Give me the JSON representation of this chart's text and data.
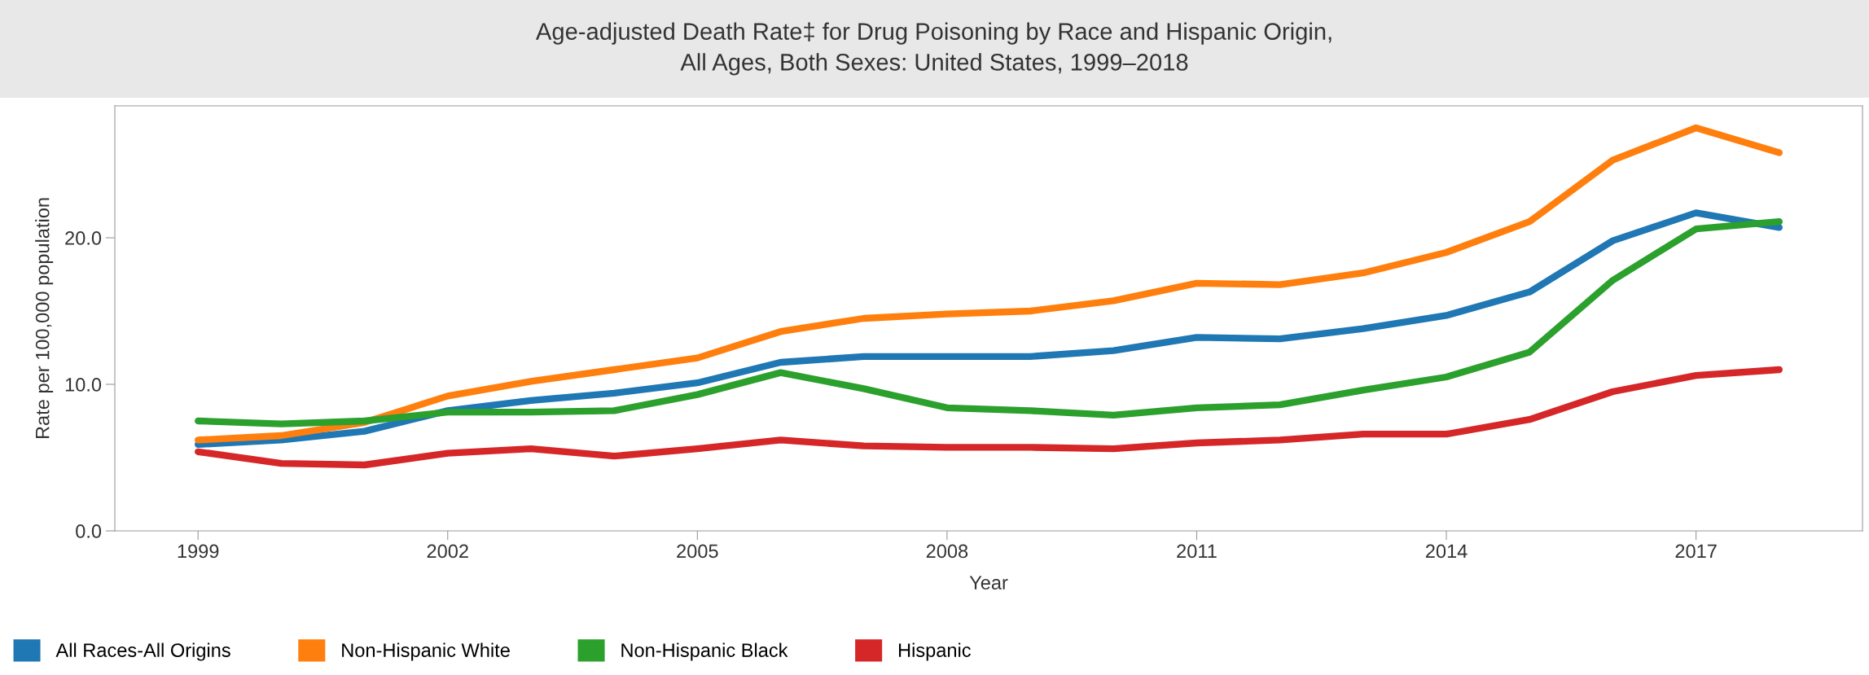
{
  "chart_data": {
    "type": "line",
    "title": "Age-adjusted Death Rate‡ for Drug Poisoning by Race and Hispanic Origin,\nAll Ages, Both Sexes: United States, 1999–2018",
    "xlabel": "Year",
    "ylabel": "Rate per 100,000 population",
    "x": [
      1999,
      2000,
      2001,
      2002,
      2003,
      2004,
      2005,
      2006,
      2007,
      2008,
      2009,
      2010,
      2011,
      2012,
      2013,
      2014,
      2015,
      2016,
      2017,
      2018
    ],
    "series": [
      {
        "name": "All Races-All Origins",
        "color": "#1f77b4",
        "values": [
          5.9,
          6.2,
          6.8,
          8.2,
          8.9,
          9.4,
          10.1,
          11.5,
          11.9,
          11.9,
          11.9,
          12.3,
          13.2,
          13.1,
          13.8,
          14.7,
          16.3,
          19.8,
          21.7,
          20.7
        ]
      },
      {
        "name": "Non-Hispanic White",
        "color": "#ff7f0e",
        "values": [
          6.2,
          6.5,
          7.4,
          9.2,
          10.2,
          11.0,
          11.8,
          13.6,
          14.5,
          14.8,
          15.0,
          15.7,
          16.9,
          16.8,
          17.6,
          19.0,
          21.1,
          25.3,
          27.5,
          25.8
        ]
      },
      {
        "name": "Non-Hispanic Black",
        "color": "#2ca02c",
        "values": [
          7.5,
          7.3,
          7.5,
          8.1,
          8.1,
          8.2,
          9.3,
          10.8,
          9.7,
          8.4,
          8.2,
          7.9,
          8.4,
          8.6,
          9.6,
          10.5,
          12.2,
          17.1,
          20.6,
          21.1
        ]
      },
      {
        "name": "Hispanic",
        "color": "#d62728",
        "values": [
          5.4,
          4.6,
          4.5,
          5.3,
          5.6,
          5.1,
          5.6,
          6.2,
          5.8,
          5.7,
          5.7,
          5.6,
          6.0,
          6.2,
          6.6,
          6.6,
          7.6,
          9.5,
          10.6,
          11.0
        ]
      }
    ],
    "xlim": [
      1998,
      2019
    ],
    "xticks": [
      1999,
      2002,
      2005,
      2008,
      2011,
      2014,
      2017
    ],
    "ylim": [
      0,
      29
    ],
    "yticks": [
      {
        "value": 0,
        "label": "0.0"
      },
      {
        "value": 10,
        "label": "10.0"
      },
      {
        "value": 20,
        "label": "20.0"
      }
    ],
    "grid": false,
    "legend": "bottom left",
    "marker": "none",
    "line_style": "solid"
  }
}
